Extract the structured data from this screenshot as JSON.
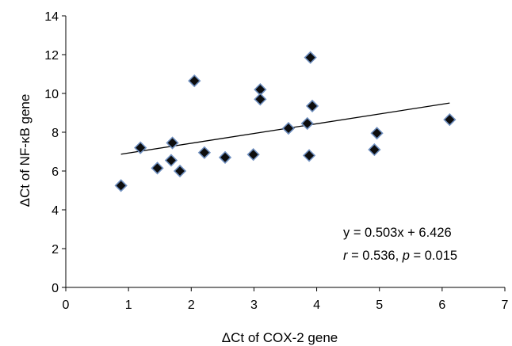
{
  "chart_data": {
    "type": "scatter",
    "xlabel": "ΔCt of COX-2 gene",
    "ylabel": "ΔCt  of NF-κB gene",
    "xlim": [
      0,
      7
    ],
    "ylim": [
      0,
      14
    ],
    "x_ticks": [
      0,
      1,
      2,
      3,
      4,
      5,
      6,
      7
    ],
    "y_ticks": [
      0,
      2,
      4,
      6,
      8,
      10,
      12,
      14
    ],
    "grid": false,
    "marker": "diamond",
    "marker_color": "#0d0d0d",
    "marker_edge_color": "#6f8fbf",
    "points": [
      {
        "x": 0.88,
        "y": 5.25
      },
      {
        "x": 1.19,
        "y": 7.2
      },
      {
        "x": 1.46,
        "y": 6.15
      },
      {
        "x": 1.68,
        "y": 6.55
      },
      {
        "x": 1.7,
        "y": 7.45
      },
      {
        "x": 1.82,
        "y": 6.0
      },
      {
        "x": 2.05,
        "y": 10.65
      },
      {
        "x": 2.21,
        "y": 6.95
      },
      {
        "x": 2.54,
        "y": 6.7
      },
      {
        "x": 2.99,
        "y": 6.85
      },
      {
        "x": 3.1,
        "y": 10.2
      },
      {
        "x": 3.1,
        "y": 9.7
      },
      {
        "x": 3.55,
        "y": 8.2
      },
      {
        "x": 3.85,
        "y": 8.45
      },
      {
        "x": 3.88,
        "y": 6.8
      },
      {
        "x": 3.9,
        "y": 11.85
      },
      {
        "x": 3.93,
        "y": 9.35
      },
      {
        "x": 4.92,
        "y": 7.1
      },
      {
        "x": 4.96,
        "y": 7.95
      },
      {
        "x": 6.12,
        "y": 8.65
      }
    ],
    "trendline": {
      "slope": 0.503,
      "intercept": 6.426,
      "x_start": 0.88,
      "x_end": 6.12
    },
    "annotations": {
      "equation": "y = 0.503x + 6.426",
      "stats": {
        "r_label": "r",
        "r_text": " = 0.536, ",
        "p_label": "p",
        "p_text": " = 0.015"
      }
    }
  }
}
